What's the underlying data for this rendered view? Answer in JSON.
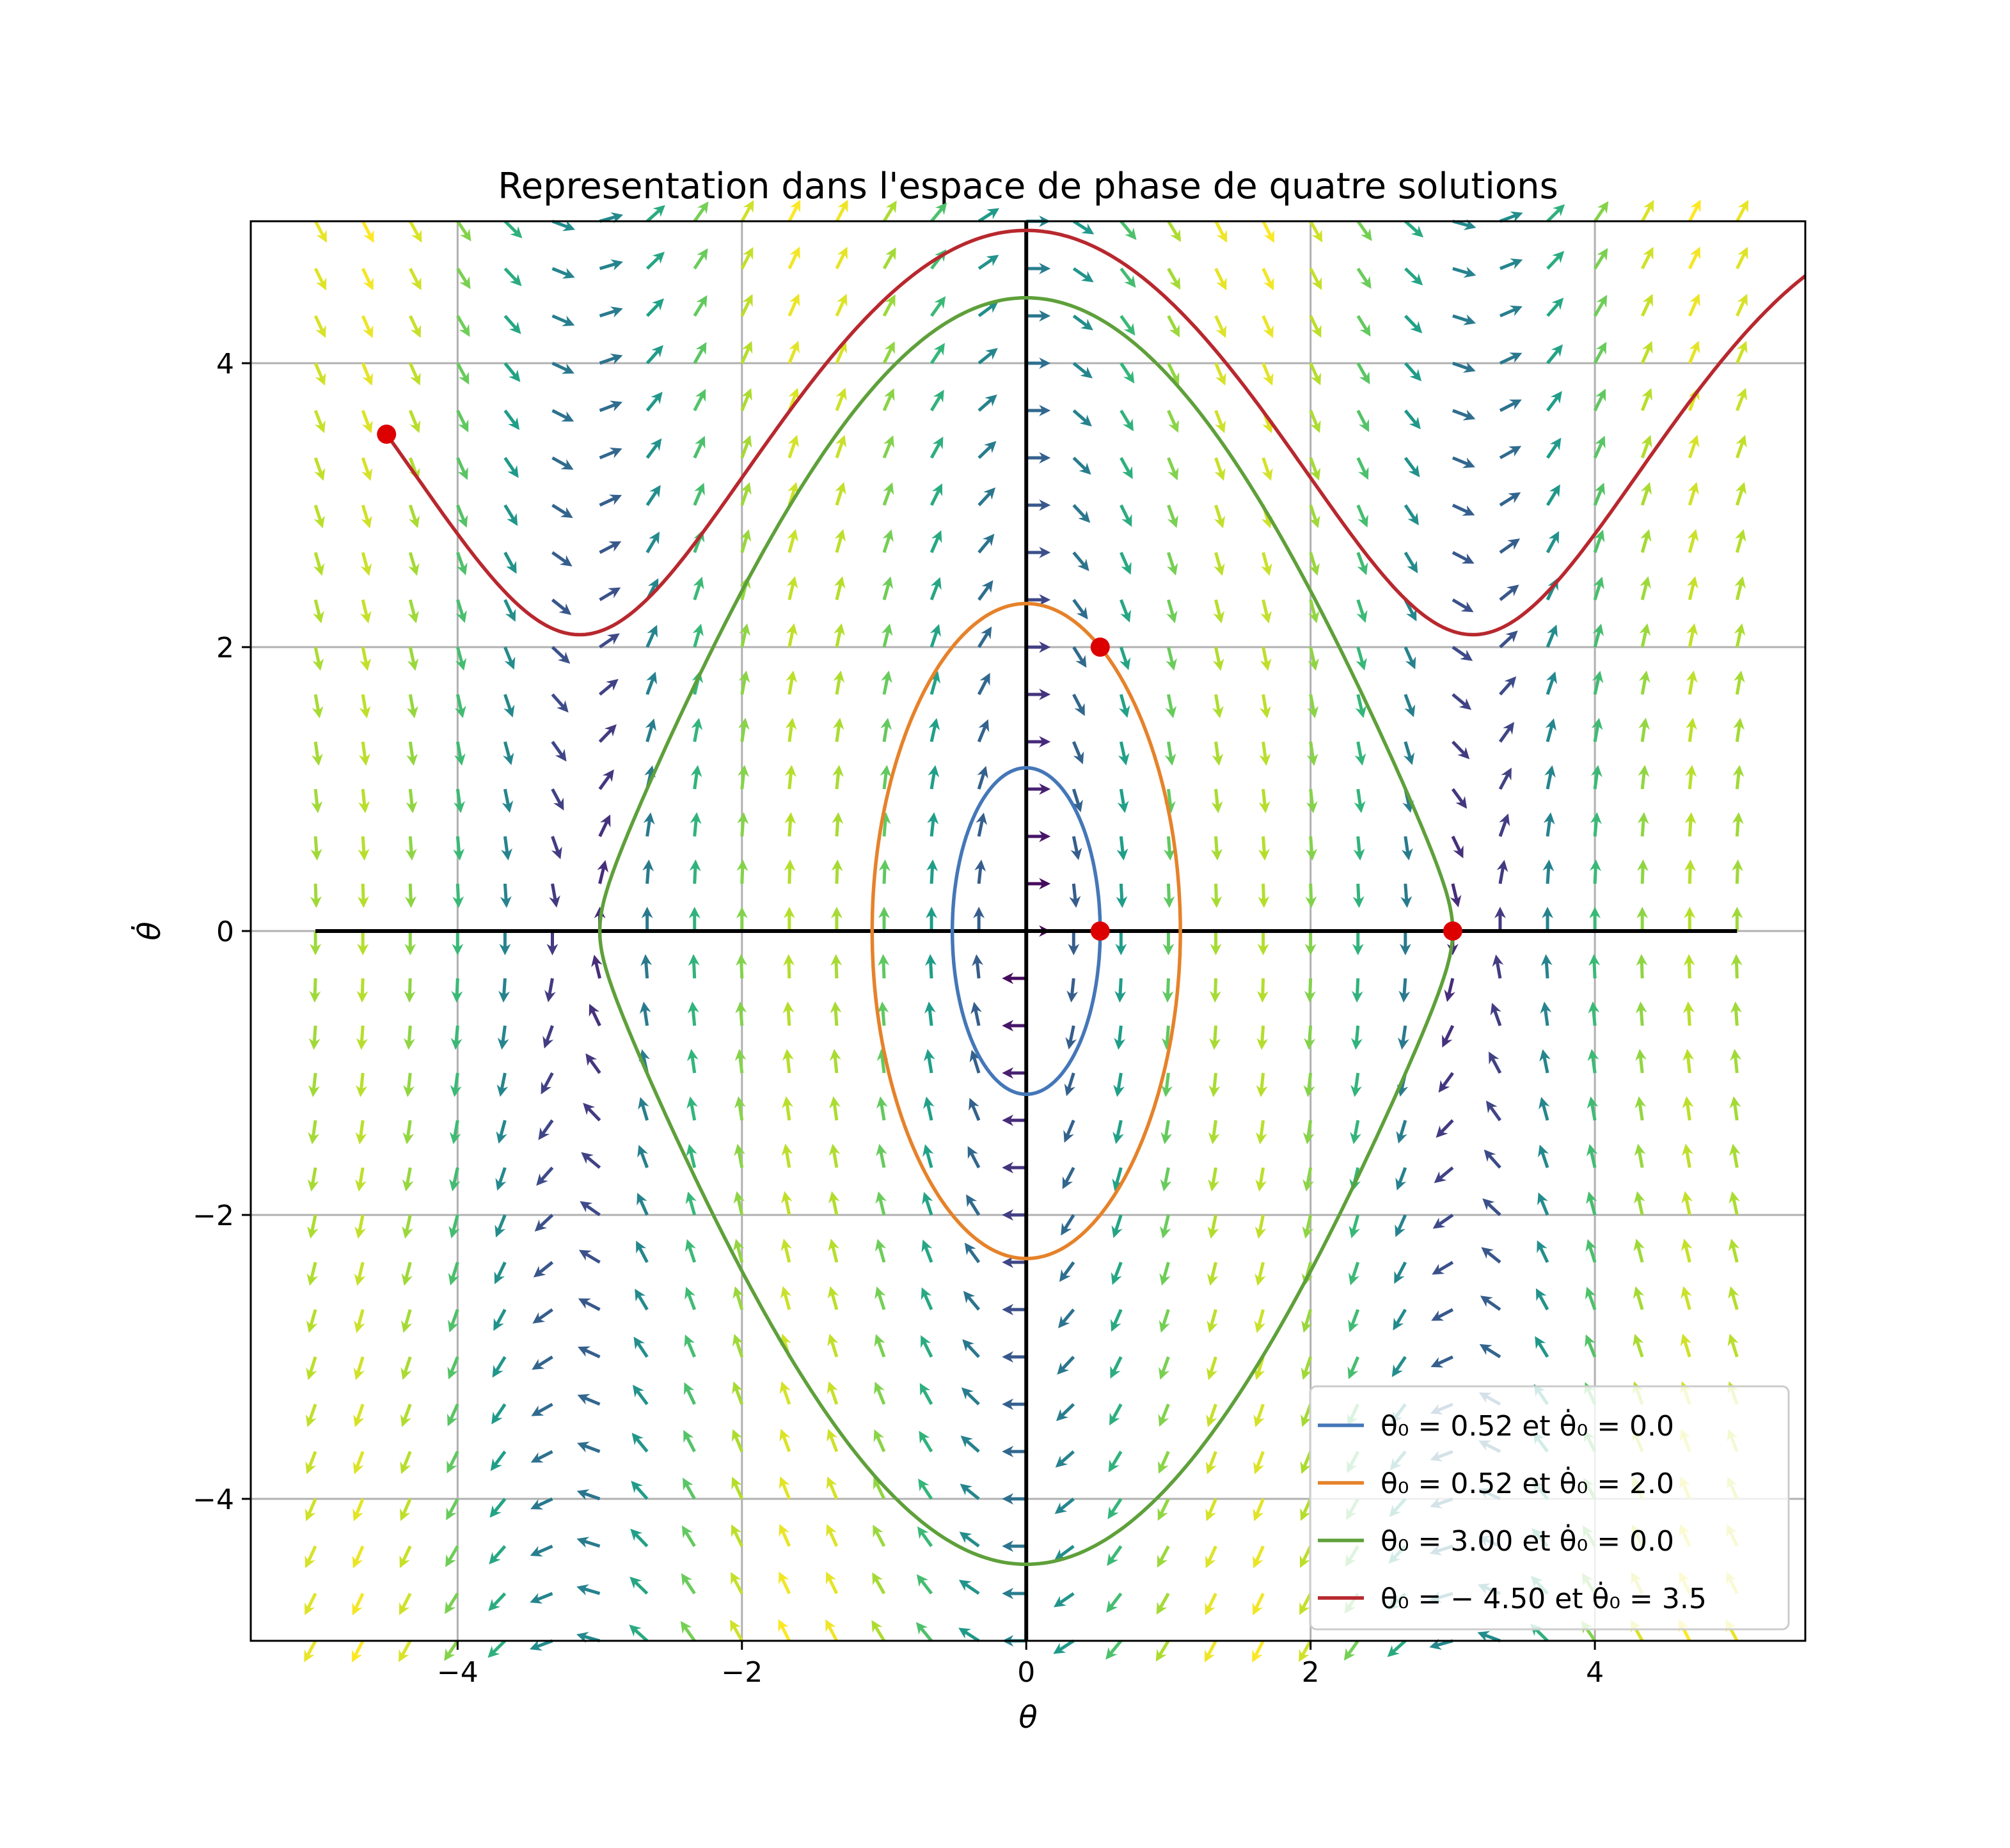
{
  "chart_data": {
    "type": "line",
    "title": "Representation dans l'espace de phase de quatre solutions",
    "xlabel": "θ",
    "ylabel": "θ̇",
    "xlim": [
      -5.455,
      5.48
    ],
    "ylim": [
      -5.0,
      5.0
    ],
    "grid": true,
    "legend_position": "bottom-right",
    "xticks": [
      {
        "v": -4,
        "label": "−4"
      },
      {
        "v": -2,
        "label": "−2"
      },
      {
        "v": 0,
        "label": "0"
      },
      {
        "v": 2,
        "label": "2"
      },
      {
        "v": 4,
        "label": "4"
      }
    ],
    "yticks": [
      {
        "v": -4,
        "label": "−4"
      },
      {
        "v": -2,
        "label": "−2"
      },
      {
        "v": 0,
        "label": "0"
      },
      {
        "v": 2,
        "label": "2"
      },
      {
        "v": 4,
        "label": "4"
      }
    ],
    "quiver": {
      "range": [
        -5,
        5
      ],
      "n": 31,
      "colormap": "viridis",
      "field": "dθ/dt = θ̇, dθ̇/dt = -9.81 sin θ"
    },
    "axes_lines": {
      "x_range": [
        -5,
        5
      ],
      "y_range": [
        -5,
        5
      ],
      "color": "#000000"
    },
    "trajectory_k": 5.0,
    "series": [
      {
        "name": "θ₀ = 0.52 et θ̇₀ = 0.0",
        "theta0": 0.52,
        "omega0": 0.0,
        "color": "#4477b8",
        "closed": true
      },
      {
        "name": "θ₀ = 0.52 et θ̇₀ = 2.0",
        "theta0": 0.52,
        "omega0": 2.0,
        "color": "#e6822a",
        "closed": true
      },
      {
        "name": "θ₀ = 3.00 et θ̇₀ = 0.0",
        "theta0": 3.0,
        "omega0": 0.0,
        "color": "#5ea03a",
        "closed": true
      },
      {
        "name": "θ₀ = − 4.50 et θ̇₀ = 3.5",
        "theta0": -4.5,
        "omega0": 3.5,
        "color": "#b8282e",
        "closed": false
      }
    ],
    "initial_points": [
      {
        "theta": 0.52,
        "omega": 0.0
      },
      {
        "theta": 0.52,
        "omega": 2.0
      },
      {
        "theta": 3.0,
        "omega": 0.0
      },
      {
        "theta": -4.5,
        "omega": 3.5
      }
    ],
    "point_color": "#dd0000"
  }
}
